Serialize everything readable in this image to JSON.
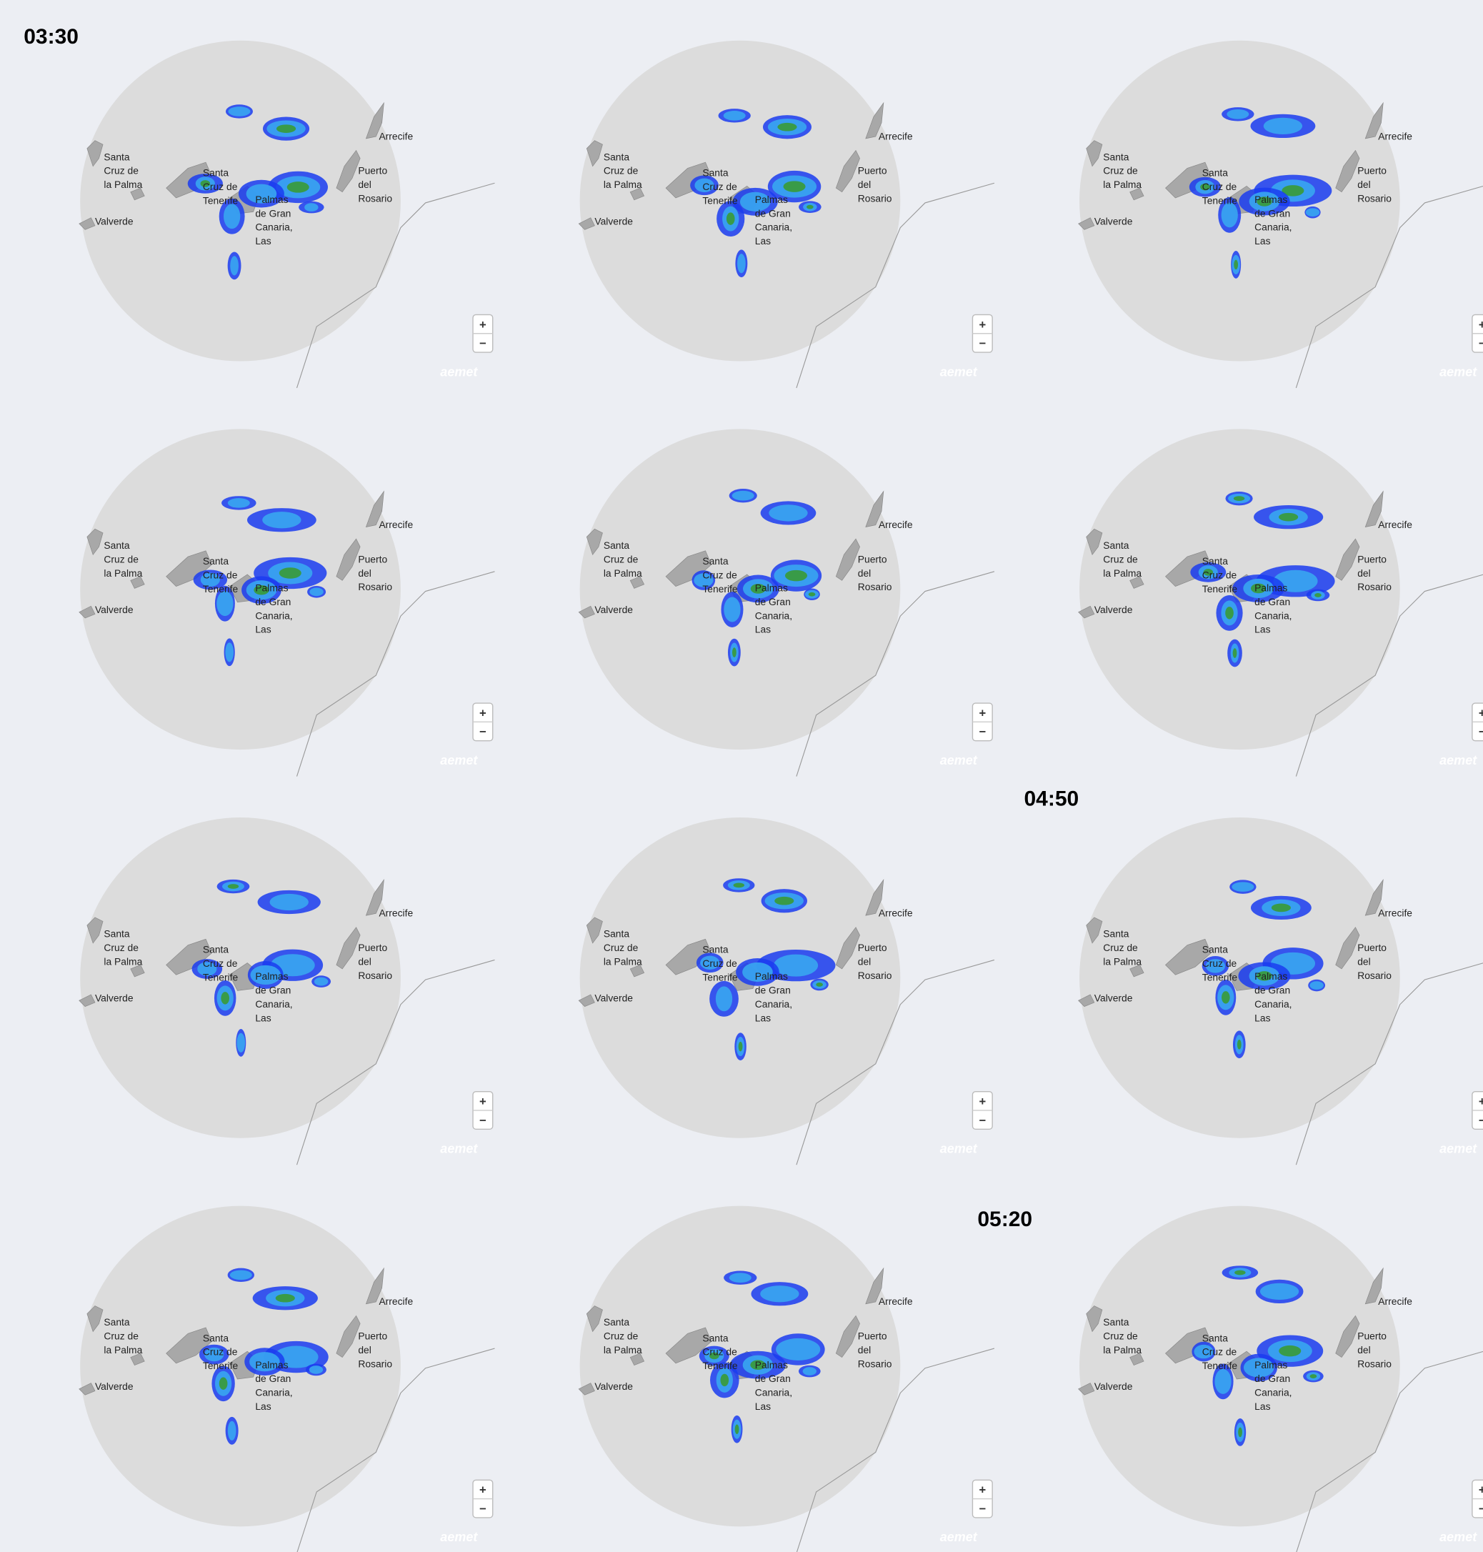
{
  "headings": [
    "03:30",
    "04:50",
    "05:20"
  ],
  "map_labels": [
    {
      "lines": [
        "Arrecife"
      ]
    },
    {
      "lines": [
        "Puerto",
        "del",
        "Rosario"
      ]
    },
    {
      "lines": [
        "Santa",
        "Cruz de",
        "la Palma"
      ]
    },
    {
      "lines": [
        "Santa",
        "Cruz de",
        "Tenerife"
      ]
    },
    {
      "lines": [
        "Palmas",
        "de Gran",
        "Canaria,",
        "Las"
      ]
    },
    {
      "lines": [
        "Valverde"
      ]
    }
  ],
  "zoom_controls": [
    "+",
    "−"
  ],
  "brand": "aemet"
}
